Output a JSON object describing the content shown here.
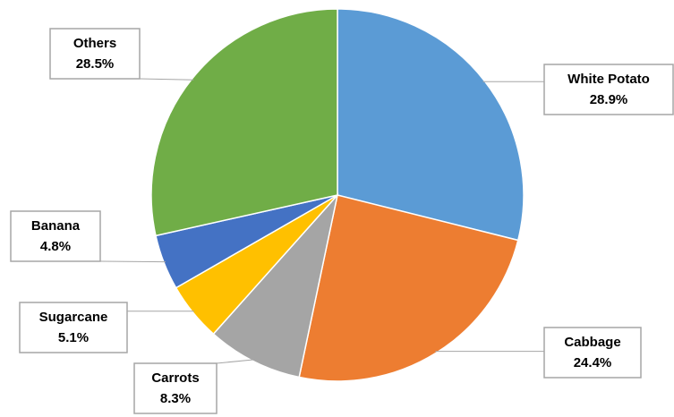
{
  "chart_data": {
    "type": "pie",
    "categories": [
      "White Potato",
      "Cabbage",
      "Carrots",
      "Sugarcane",
      "Banana",
      "Others"
    ],
    "values": [
      28.9,
      24.4,
      8.3,
      5.1,
      4.8,
      28.5
    ],
    "value_labels": [
      "28.9%",
      "24.4%",
      "8.3%",
      "5.1%",
      "4.8%",
      "28.5%"
    ],
    "colors": [
      "#5b9bd5",
      "#ed7d31",
      "#a5a5a5",
      "#ffc000",
      "#4472c4",
      "#70ad47"
    ]
  }
}
